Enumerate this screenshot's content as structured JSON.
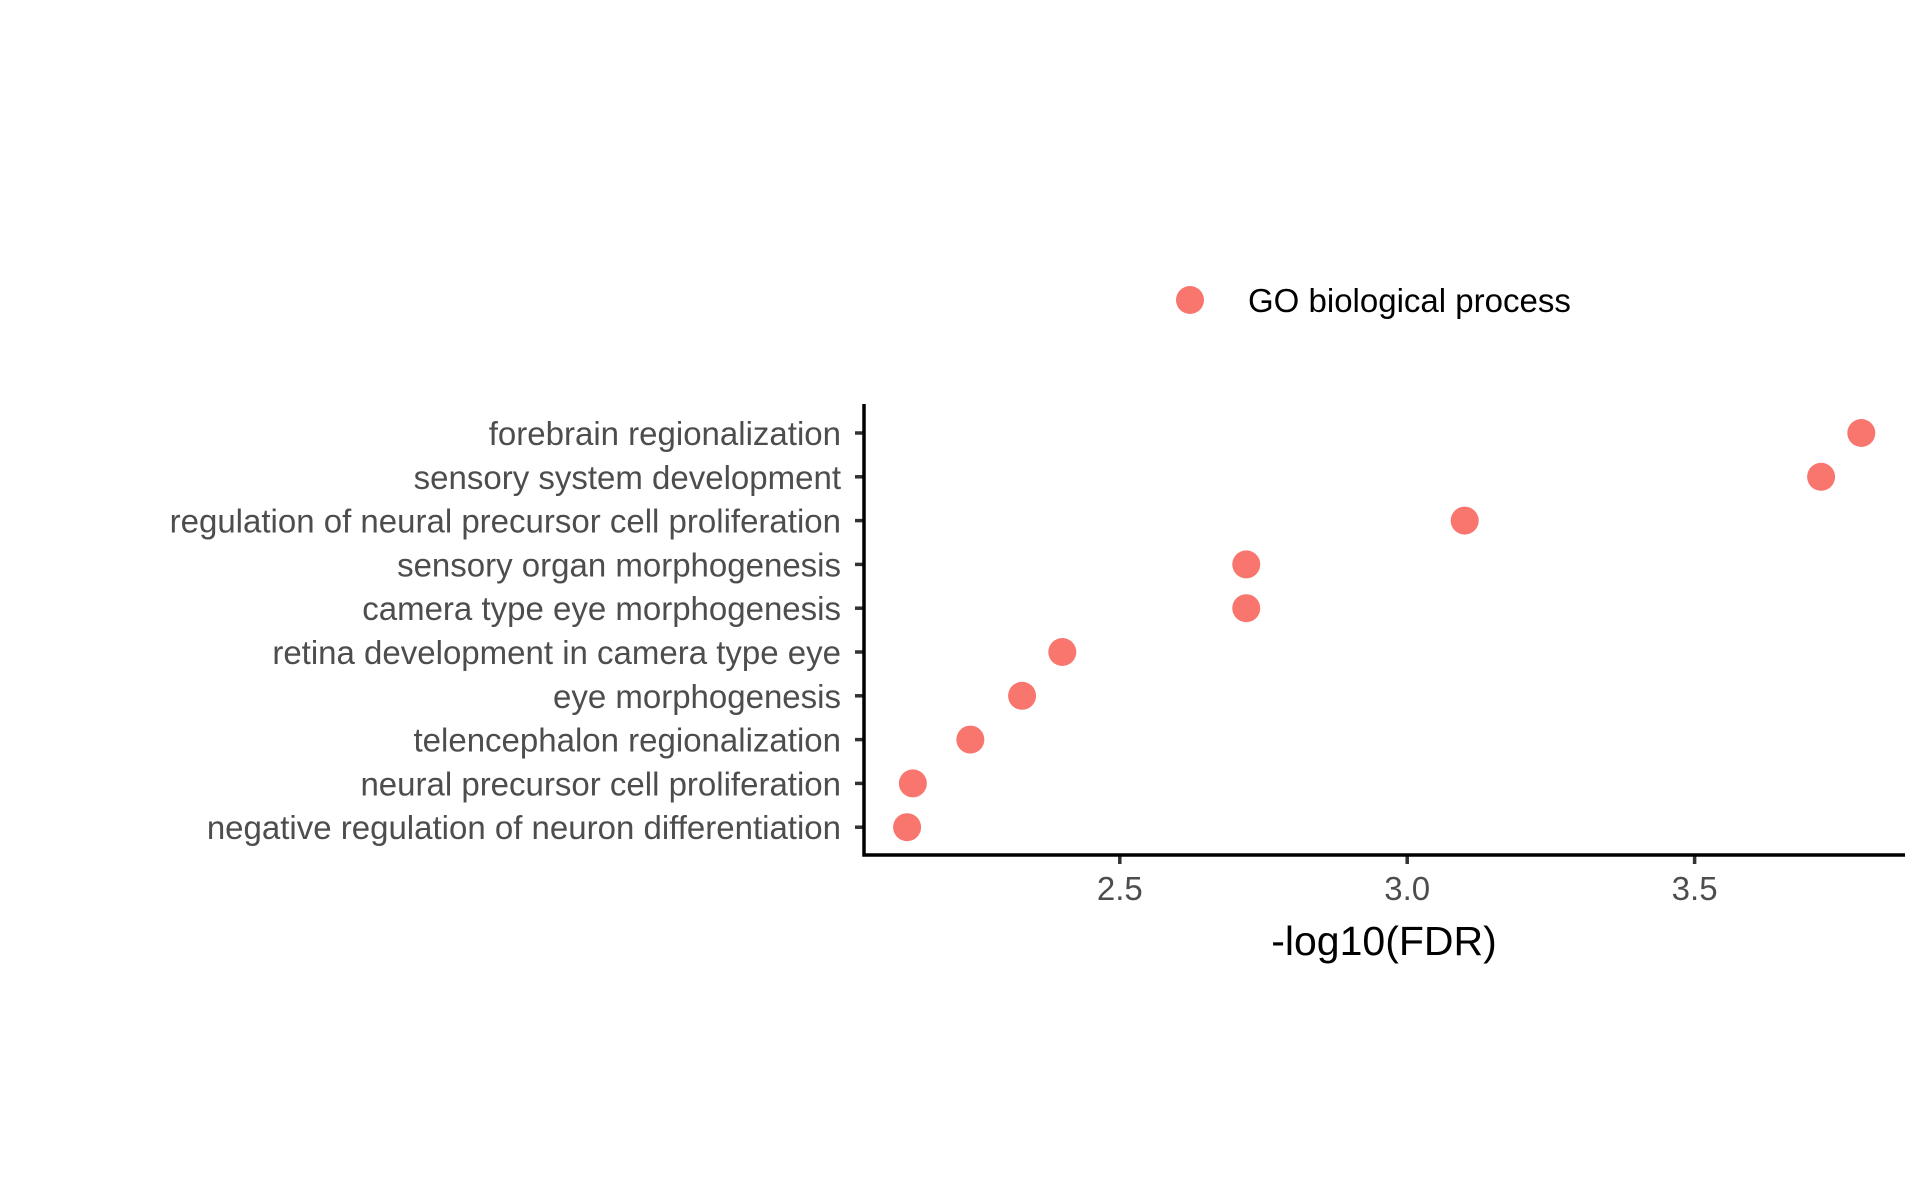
{
  "chart_data": {
    "type": "scatter",
    "title": "",
    "xlabel": "-log10(FDR)",
    "ylabel": "",
    "xlim": [
      2.055,
      3.866
    ],
    "xticks": [
      2.5,
      3.0,
      3.5
    ],
    "xtick_labels": [
      "2.5",
      "3.0",
      "3.5"
    ],
    "categories": [
      "forebrain regionalization",
      "sensory system development",
      "regulation of neural precursor cell proliferation",
      "sensory organ morphogenesis",
      "camera type eye morphogenesis",
      "retina development in camera type eye",
      "eye morphogenesis",
      "telencephalon regionalization",
      "neural precursor cell proliferation",
      "negative regulation of neuron differentiation"
    ],
    "series": [
      {
        "name": "GO biological process",
        "color": "#F8766D",
        "values": [
          3.79,
          3.72,
          3.1,
          2.72,
          2.72,
          2.4,
          2.33,
          2.24,
          2.14,
          2.13
        ]
      }
    ],
    "grid": false,
    "legend_position": "top"
  }
}
